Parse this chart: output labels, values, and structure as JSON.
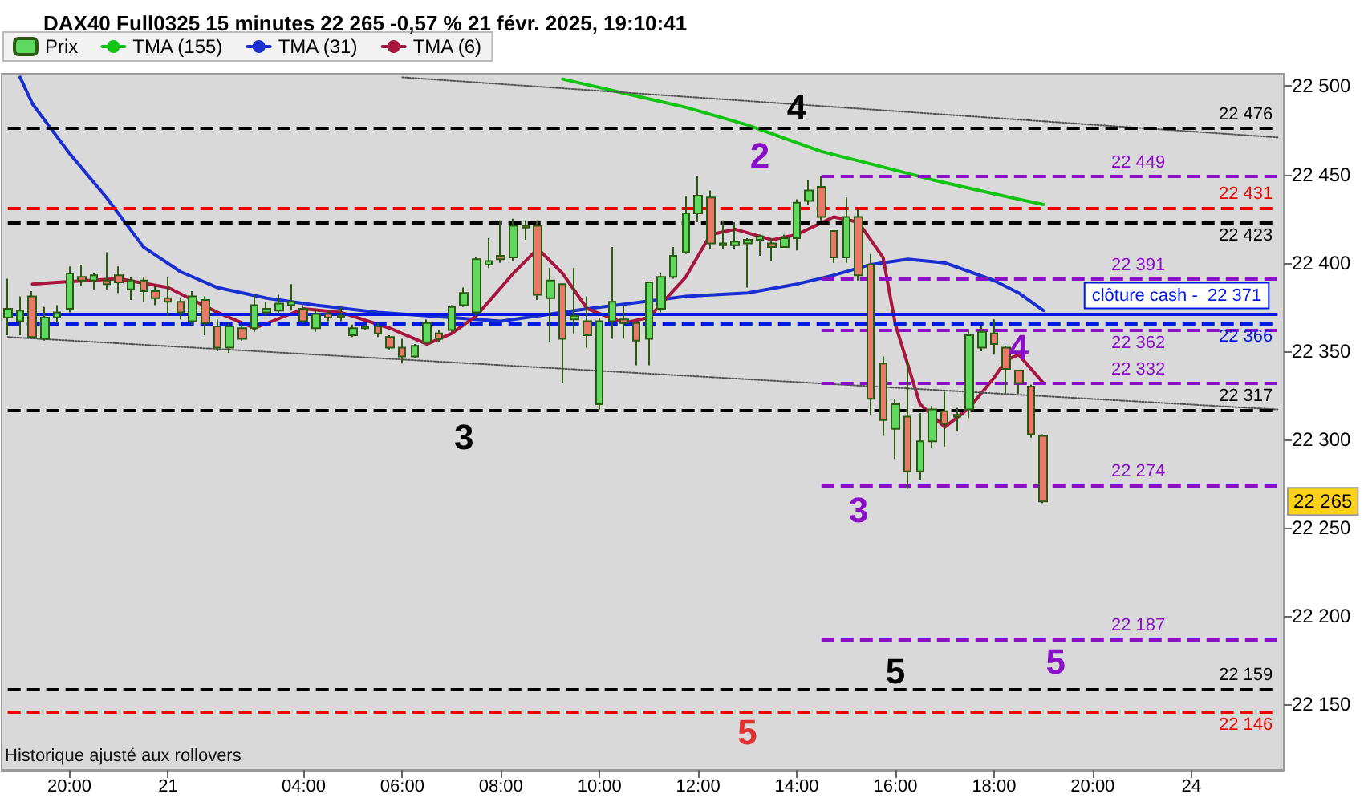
{
  "chart_data": {
    "type": "candlestick",
    "title": "DAX40 Full0325 15 minutes 22 265 -0,57 % 21 févr. 2025, 19:10:41",
    "categories": [
      null,
      null,
      null,
      null,
      null,
      "20:00",
      null,
      null,
      null,
      null,
      null,
      null,
      null,
      "21",
      null,
      null,
      null,
      null,
      null,
      null,
      null,
      null,
      null,
      null,
      "04:00",
      null,
      null,
      null,
      null,
      null,
      null,
      null,
      "06:00",
      null,
      null,
      null,
      null,
      null,
      null,
      null,
      "08:00",
      null,
      null,
      null,
      null,
      null,
      null,
      null,
      "10:00",
      null,
      null,
      null,
      null,
      null,
      null,
      null,
      "12:00",
      null,
      null,
      null,
      null,
      null,
      null,
      null,
      "14:00",
      null,
      null,
      null,
      null,
      null,
      null,
      null,
      "16:00",
      null,
      null,
      null,
      null,
      null,
      null,
      null,
      "18:00",
      null,
      null,
      null,
      null,
      null,
      null,
      null,
      "20:00",
      null,
      null,
      null,
      null,
      null,
      null,
      null,
      "24",
      null,
      null,
      null,
      null,
      null,
      null,
      null
    ],
    "ylim": [
      22113,
      22507
    ],
    "yticks": [
      {
        "value": 22150,
        "label": "22 150"
      },
      {
        "value": 22200,
        "label": "22 200"
      },
      {
        "value": 22250,
        "label": "22 250"
      },
      {
        "value": 22300,
        "label": "22 300"
      },
      {
        "value": 22350,
        "label": "22 350"
      },
      {
        "value": 22400,
        "label": "22 400"
      },
      {
        "value": 22450,
        "label": "22 450"
      },
      {
        "value": 22500,
        "label": "22 500"
      }
    ],
    "legend": "top left",
    "series": [
      {
        "name": "Prix",
        "ohlc": [
          [
            22369,
            22391,
            22359,
            22374
          ],
          [
            22367,
            22381,
            22359,
            22373
          ],
          [
            22381,
            22384,
            22357,
            22358
          ],
          [
            22357,
            22375,
            22356,
            22369
          ],
          [
            22369,
            22376,
            22366,
            22372
          ],
          [
            22374,
            22398,
            22372,
            22394
          ],
          [
            22392,
            22399,
            22387,
            22390
          ],
          [
            22390,
            22394,
            22385,
            22393
          ],
          [
            22390,
            22406,
            22385,
            22388
          ],
          [
            22393,
            22398,
            22383,
            22389
          ],
          [
            22385,
            22392,
            22379,
            22390
          ],
          [
            22390,
            22392,
            22378,
            22384
          ],
          [
            22384,
            22387,
            22376,
            22380
          ],
          [
            22380,
            22392,
            22370,
            22378
          ],
          [
            22378,
            22380,
            22368,
            22372
          ],
          [
            22367,
            22384,
            22365,
            22381
          ],
          [
            22379,
            22381,
            22359,
            22366
          ],
          [
            22364,
            22368,
            22350,
            22352
          ],
          [
            22352,
            22366,
            22349,
            22364
          ],
          [
            22363,
            22365,
            22356,
            22357
          ],
          [
            22363,
            22382,
            22361,
            22376
          ],
          [
            22372,
            22378,
            22370,
            22374
          ],
          [
            22373,
            22382,
            22371,
            22377
          ],
          [
            22376,
            22388,
            22373,
            22378
          ],
          [
            22374,
            22376,
            22366,
            22367
          ],
          [
            22363,
            22373,
            22361,
            22371
          ],
          [
            22371,
            22373,
            22367,
            22369
          ],
          [
            22370,
            22375,
            22367,
            22369
          ],
          [
            22359,
            22365,
            22358,
            22363
          ],
          [
            22363,
            22365,
            22362,
            22364
          ],
          [
            22364,
            22366,
            22358,
            22360
          ],
          [
            22358,
            22359,
            22351,
            22352
          ],
          [
            22352,
            22357,
            22343,
            22347
          ],
          [
            22347,
            22354,
            22346,
            22353
          ],
          [
            22355,
            22368,
            22354,
            22366
          ],
          [
            22360,
            22362,
            22355,
            22357
          ],
          [
            22362,
            22376,
            22361,
            22375
          ],
          [
            22376,
            22386,
            22375,
            22383
          ],
          [
            22372,
            22403,
            22370,
            22402
          ],
          [
            22399,
            22414,
            22397,
            22401
          ],
          [
            22404,
            22424,
            22400,
            22402
          ],
          [
            22403,
            22425,
            22401,
            22421
          ],
          [
            22421,
            22424,
            22413,
            22420
          ],
          [
            22421,
            22424,
            22379,
            22382
          ],
          [
            22380,
            22397,
            22355,
            22390
          ],
          [
            22388,
            22388,
            22332,
            22357
          ],
          [
            22368,
            22397,
            22360,
            22370
          ],
          [
            22367,
            22381,
            22352,
            22359
          ],
          [
            22320,
            22369,
            22317,
            22367
          ],
          [
            22367,
            22409,
            22357,
            22378
          ],
          [
            22368,
            22376,
            22357,
            22366
          ],
          [
            22366,
            22366,
            22342,
            22356
          ],
          [
            22357,
            22389,
            22342,
            22389
          ],
          [
            22374,
            22394,
            22372,
            22392
          ],
          [
            22392,
            22409,
            22391,
            22404
          ],
          [
            22406,
            22438,
            22405,
            22428
          ],
          [
            22428,
            22449,
            22423,
            22438
          ],
          [
            22437,
            22441,
            22408,
            22411
          ],
          [
            22410,
            22424,
            22408,
            22411
          ],
          [
            22410,
            22423,
            22408,
            22412
          ],
          [
            22411,
            22414,
            22386,
            22413
          ],
          [
            22413,
            22416,
            22404,
            22415
          ],
          [
            22411,
            22414,
            22401,
            22409
          ],
          [
            22409,
            22416,
            22409,
            22414
          ],
          [
            22414,
            22436,
            22407,
            22434
          ],
          [
            22435,
            22447,
            22433,
            22441
          ],
          [
            22443,
            22449,
            22424,
            22426
          ],
          [
            22418,
            22418,
            22400,
            22403
          ],
          [
            22403,
            22437,
            22400,
            22426
          ],
          [
            22426,
            22431,
            22390,
            22393
          ],
          [
            22399,
            22405,
            22314,
            22323
          ],
          [
            22343,
            22347,
            22302,
            22311
          ],
          [
            22306,
            22323,
            22289,
            22320
          ],
          [
            22313,
            22345,
            22272,
            22282
          ],
          [
            22282,
            22315,
            22277,
            22299
          ],
          [
            22299,
            22319,
            22295,
            22317
          ],
          [
            22316,
            22327,
            22296,
            22309
          ],
          [
            22314,
            22318,
            22305,
            22313
          ],
          [
            22317,
            22362,
            22312,
            22359
          ],
          [
            22352,
            22364,
            22350,
            22361
          ],
          [
            22360,
            22368,
            22348,
            22354
          ],
          [
            22352,
            22353,
            22326,
            22340
          ],
          [
            22339,
            22339,
            22326,
            22332
          ],
          [
            22330,
            22331,
            22301,
            22303
          ],
          [
            22302,
            22303,
            22264,
            22265
          ],
          null,
          null,
          null,
          null,
          null,
          null,
          null,
          null,
          null,
          null,
          null,
          null,
          null,
          null,
          null,
          null,
          null,
          null,
          null
        ]
      },
      {
        "name": "TMA (155)",
        "type": "line",
        "color": "#12c412",
        "values": [
          null,
          null,
          null,
          null,
          null,
          null,
          null,
          null,
          null,
          null,
          null,
          null,
          null,
          null,
          null,
          null,
          null,
          null,
          null,
          null,
          null,
          null,
          null,
          null,
          null,
          null,
          null,
          null,
          null,
          null,
          null,
          null,
          null,
          null,
          null,
          null,
          null,
          null,
          null,
          null,
          null,
          null,
          null,
          null,
          null,
          22504,
          null,
          null,
          null,
          null,
          null,
          null,
          null,
          null,
          null,
          22488,
          null,
          null,
          null,
          null,
          22478,
          null,
          null,
          null,
          null,
          null,
          22463,
          null,
          null,
          null,
          22456,
          null,
          null,
          null,
          null,
          22447,
          null,
          null,
          null,
          null,
          22439,
          null,
          null,
          null,
          22433,
          null,
          null,
          null,
          null,
          null,
          null,
          null,
          null,
          null,
          null,
          null,
          null,
          null,
          null,
          null,
          null,
          null,
          null,
          null
        ]
      },
      {
        "name": "TMA (31)",
        "type": "line",
        "color": "#1a2fd0",
        "values": [
          null,
          22505,
          22490,
          null,
          null,
          22462,
          null,
          null,
          22437,
          null,
          null,
          22409,
          null,
          null,
          22395,
          null,
          null,
          22386,
          null,
          null,
          null,
          22380,
          null,
          null,
          null,
          22376,
          null,
          null,
          null,
          null,
          22372,
          null,
          null,
          null,
          22370,
          null,
          null,
          null,
          null,
          null,
          22367,
          null,
          null,
          null,
          null,
          null,
          null,
          22374,
          null,
          null,
          null,
          null,
          null,
          null,
          null,
          22381,
          null,
          null,
          null,
          null,
          22383,
          null,
          null,
          null,
          22388,
          null,
          null,
          22393,
          null,
          null,
          22399,
          null,
          null,
          22402,
          null,
          null,
          22400,
          null,
          null,
          null,
          22390,
          null,
          22383,
          null,
          22373,
          null,
          null,
          null,
          null,
          null,
          null,
          null,
          null,
          null,
          null,
          null,
          null,
          null,
          null,
          null,
          null,
          null,
          null,
          null
        ]
      },
      {
        "name": "TMA (6)",
        "type": "line",
        "color": "#a8163f",
        "values": [
          null,
          null,
          22388,
          null,
          22389,
          null,
          null,
          null,
          null,
          22391,
          null,
          null,
          null,
          22386,
          null,
          null,
          null,
          22372,
          null,
          null,
          22363,
          null,
          null,
          null,
          22374,
          null,
          null,
          22372,
          null,
          null,
          null,
          22363,
          null,
          null,
          22354,
          null,
          22360,
          null,
          22370,
          null,
          null,
          22394,
          null,
          22408,
          null,
          22394,
          null,
          22374,
          null,
          null,
          22366,
          null,
          22369,
          null,
          null,
          22392,
          null,
          22416,
          null,
          22419,
          null,
          null,
          22413,
          null,
          22416,
          null,
          null,
          22426,
          null,
          22423,
          null,
          22403,
          22365,
          null,
          22320,
          null,
          22307,
          null,
          22318,
          null,
          22335,
          22345,
          22348,
          22340,
          22332,
          null,
          null,
          null,
          null,
          null,
          null,
          null,
          null,
          null,
          null,
          null,
          null,
          null,
          null,
          null,
          null,
          null,
          null,
          null
        ]
      },
      {
        "type": "line",
        "color": "#555555",
        "line_style": "dotted",
        "values": [
          null,
          null,
          null,
          null,
          null,
          null,
          null,
          null,
          null,
          null,
          null,
          null,
          null,
          null,
          null,
          null,
          null,
          null,
          null,
          null,
          null,
          null,
          null,
          null,
          null,
          null,
          null,
          null,
          null,
          null,
          null,
          null,
          22505,
          null,
          null,
          null,
          null,
          null,
          null,
          null,
          null,
          null,
          null,
          null,
          null,
          null,
          null,
          null,
          null,
          null,
          null,
          null,
          null,
          null,
          null,
          null,
          null,
          null,
          null,
          null,
          null,
          null,
          null,
          null,
          null,
          null,
          null,
          null,
          null,
          null,
          null,
          null,
          null,
          null,
          null,
          null,
          null,
          null,
          null,
          null,
          null,
          null,
          null,
          null,
          null,
          null,
          null,
          null,
          null,
          null,
          null,
          null,
          null,
          null,
          null,
          null,
          null,
          null,
          null,
          null,
          null,
          null,
          null,
          22471
        ]
      },
      {
        "type": "line",
        "color": "#555555",
        "line_style": "dotted",
        "values": [
          22358,
          null,
          null,
          null,
          null,
          null,
          null,
          null,
          null,
          null,
          null,
          null,
          null,
          null,
          null,
          null,
          null,
          null,
          null,
          null,
          null,
          null,
          null,
          null,
          null,
          null,
          null,
          null,
          null,
          null,
          null,
          null,
          null,
          null,
          null,
          null,
          null,
          null,
          null,
          null,
          null,
          null,
          null,
          null,
          null,
          null,
          null,
          null,
          null,
          null,
          null,
          null,
          null,
          null,
          null,
          null,
          null,
          null,
          null,
          null,
          null,
          null,
          null,
          null,
          null,
          null,
          null,
          null,
          null,
          null,
          null,
          null,
          null,
          null,
          null,
          null,
          null,
          null,
          null,
          null,
          null,
          null,
          null,
          null,
          null,
          null,
          null,
          null,
          null,
          null,
          null,
          null,
          null,
          null,
          null,
          null,
          null,
          null,
          null,
          null,
          null,
          null,
          null,
          22317
        ]
      }
    ],
    "ref_lines": [
      {
        "axis": "y",
        "value": 22476,
        "label": "22 476",
        "color": "#000000",
        "line_style": "dashed"
      },
      {
        "axis": "y",
        "value": 22449,
        "label": "22 449",
        "color": "#8a10c8",
        "line_style": "dashed"
      },
      {
        "axis": "y",
        "value": 22431,
        "label": "22 431",
        "color": "#ee0000",
        "line_style": "dashed"
      },
      {
        "axis": "y",
        "value": 22423,
        "label": "22 423",
        "color": "#000000",
        "line_style": "dashed"
      },
      {
        "axis": "y",
        "value": 22391,
        "label": "22 391",
        "color": "#8a10c8",
        "line_style": "dashed"
      },
      {
        "axis": "y",
        "value": 22371,
        "label": "clôture cash -  22 371",
        "color": "#0018e0",
        "line_style": "solid"
      },
      {
        "axis": "y",
        "value": 22366,
        "label": "22 366",
        "color": "#0018e0",
        "line_style": "dashed"
      },
      {
        "axis": "y",
        "value": 22362,
        "label": "22 362",
        "color": "#8a10c8",
        "line_style": "dashed"
      },
      {
        "axis": "y",
        "value": 22332,
        "label": "22 332",
        "color": "#8a10c8",
        "line_style": "dashed"
      },
      {
        "axis": "y",
        "value": 22317,
        "label": "22 317",
        "color": "#000000",
        "line_style": "dashed"
      },
      {
        "axis": "y",
        "value": 22274,
        "label": "22 274",
        "color": "#8a10c8",
        "line_style": "dashed"
      },
      {
        "axis": "y",
        "value": 22187,
        "label": "22 187",
        "color": "#8a10c8",
        "line_style": "dashed"
      },
      {
        "axis": "y",
        "value": 22159,
        "label": "22 159",
        "color": "#000000",
        "line_style": "dashed"
      },
      {
        "axis": "y",
        "value": 22146,
        "label": "22 146",
        "color": "#ee0000",
        "line_style": "dashed"
      }
    ],
    "annotations": [
      "4",
      "2",
      {
        "text": "3",
        "y": 22313
      },
      {
        "text": "3",
        "y": 22272
      },
      {
        "text": "4",
        "y": 22364
      },
      {
        "text": "5",
        "y": 22186
      },
      {
        "text": "5",
        "y": 22157
      },
      {
        "text": "5",
        "y": 22146
      },
      "Historique ajusté aux rollovers",
      "22 265"
    ]
  }
}
